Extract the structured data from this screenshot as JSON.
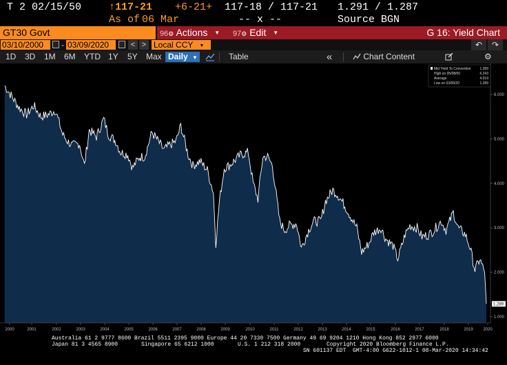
{
  "quote": {
    "ticker": "T 2 02/15/50",
    "price": "117-21",
    "as_of_label": "As of",
    "as_of_date": "06 Mar",
    "change": "+6-21+",
    "bid_ask": "117-18 / 117-21",
    "size": "-- x --",
    "yields": "1.291 / 1.287",
    "source": "Source BGN"
  },
  "titlebar": {
    "security": "GT30 Govt",
    "actions_num": "96",
    "actions_label": "Actions",
    "edit_num": "97",
    "edit_label": "Edit",
    "function_title": "G 16: Yield Chart"
  },
  "daterow": {
    "start_date": "03/10/2000",
    "end_date": "03/09/2020",
    "currency": "Local CCY",
    "prev": "<",
    "next": ">",
    "undo": "↶",
    "redo": "↷"
  },
  "toolbar": {
    "periods": [
      "1D",
      "3D",
      "1M",
      "6M",
      "YTD",
      "1Y",
      "5Y",
      "Max"
    ],
    "frequency": "Daily",
    "table_label": "Table",
    "collapse": "«",
    "chart_content_label": "Chart Content"
  },
  "colors": {
    "accent_orange": "#fb8b1e",
    "title_red": "#9c1a24",
    "area_fill": "#0f2c4a",
    "line": "#ffffff"
  },
  "chart_data": {
    "type": "area",
    "y_axis": {
      "min": 0.7,
      "max": 6.5,
      "side": "right",
      "ticks": [
        "1.000",
        "2.000",
        "3.000",
        "4.000",
        "5.000",
        "6.000"
      ]
    },
    "x_ticks": [
      "2000",
      "2001",
      "2002",
      "2003",
      "2004",
      "2005",
      "2006",
      "2007",
      "2008",
      "2009",
      "2010",
      "2011",
      "2012",
      "2013",
      "2014",
      "2015",
      "2016",
      "2017",
      "2018",
      "2019",
      "2020"
    ],
    "x": [
      2000.19,
      2000.5,
      2000.8,
      2001.1,
      2001.4,
      2001.7,
      2002.0,
      2002.3,
      2002.6,
      2002.8,
      2003.0,
      2003.3,
      2003.5,
      2003.7,
      2004.0,
      2004.3,
      2004.5,
      2004.8,
      2005.0,
      2005.3,
      2005.5,
      2005.8,
      2006.0,
      2006.3,
      2006.5,
      2006.8,
      2007.0,
      2007.3,
      2007.5,
      2007.8,
      2008.0,
      2008.3,
      2008.6,
      2008.85,
      2008.95,
      2009.1,
      2009.3,
      2009.5,
      2009.8,
      2010.0,
      2010.3,
      2010.5,
      2010.7,
      2010.9,
      2011.1,
      2011.3,
      2011.6,
      2011.8,
      2012.0,
      2012.3,
      2012.5,
      2012.8,
      2013.0,
      2013.3,
      2013.5,
      2013.8,
      2014.0,
      2014.3,
      2014.6,
      2014.8,
      2015.0,
      2015.3,
      2015.5,
      2015.8,
      2016.0,
      2016.3,
      2016.5,
      2016.8,
      2017.0,
      2017.3,
      2017.5,
      2017.8,
      2018.0,
      2018.3,
      2018.5,
      2018.8,
      2019.0,
      2019.3,
      2019.5,
      2019.7,
      2019.9,
      2020.1,
      2020.17
    ],
    "series": [
      {
        "values": [
          6.2,
          5.95,
          5.7,
          5.55,
          5.75,
          5.5,
          5.55,
          5.65,
          5.1,
          4.95,
          4.85,
          4.9,
          4.4,
          5.2,
          5.05,
          5.45,
          5.1,
          4.95,
          4.7,
          4.65,
          4.35,
          4.6,
          4.6,
          5.15,
          5.0,
          4.75,
          4.85,
          4.95,
          5.3,
          4.65,
          4.4,
          4.5,
          4.3,
          3.8,
          2.65,
          3.6,
          4.35,
          4.4,
          4.55,
          4.65,
          4.7,
          4.0,
          3.65,
          4.6,
          4.6,
          4.4,
          3.15,
          2.95,
          3.05,
          3.1,
          2.55,
          2.95,
          3.15,
          3.15,
          3.6,
          3.85,
          3.75,
          3.5,
          3.2,
          3.0,
          2.45,
          2.65,
          2.9,
          3.0,
          2.75,
          2.6,
          2.3,
          2.85,
          3.05,
          3.0,
          2.8,
          2.85,
          2.95,
          3.15,
          2.95,
          3.35,
          3.0,
          2.85,
          2.55,
          2.05,
          2.3,
          2.0,
          1.289
        ]
      }
    ],
    "last_value_label": "1.289",
    "legend": {
      "placement": "top-right",
      "rows": [
        {
          "label": "Mid Yield To Convention",
          "value": "1.289"
        },
        {
          "label": "High on 05/08/00",
          "value": "6.243"
        },
        {
          "label": "Average",
          "value": "4.019"
        },
        {
          "label": "Low on 03/06/20",
          "value": "1.289"
        }
      ]
    }
  },
  "footer": {
    "line1": "Australia 61 2 9777 8600 Brazil 5511 2395 9000 Europe 44 20 7330 7500 Germany 49 69 9204 1210 Hong Kong 852 2977 6000",
    "line2a": "Japan 81 3 4565 8900",
    "line2b": "Singapore 65 6212 1000",
    "line2c": "U.S. 1 212 318 2000",
    "line2d": "Copyright 2020 Bloomberg Finance L.P.",
    "line3": "SN 601137 EDT  GMT-4:00 G622-1012-1 08-Mar-2020 14:34:42"
  }
}
